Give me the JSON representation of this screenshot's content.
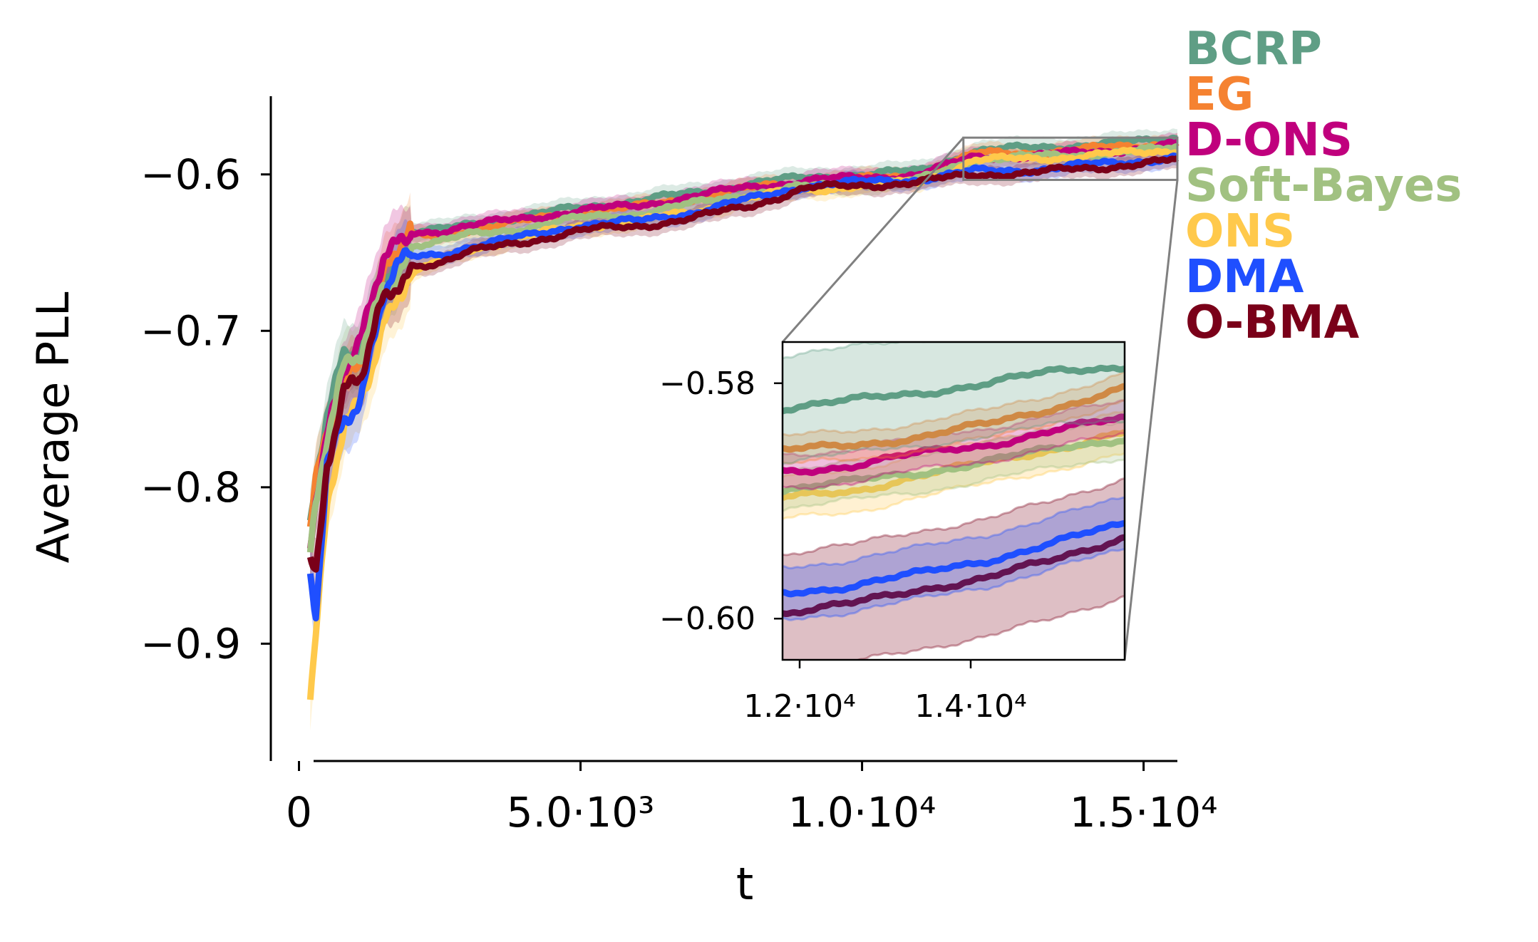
{
  "chart_data": {
    "type": "line",
    "title": "",
    "xlabel": "t",
    "ylabel": "Average PLL",
    "xlim": [
      -500,
      15600
    ],
    "ylim": [
      -0.975,
      -0.55
    ],
    "xticks": [
      {
        "value": 0,
        "label": "0"
      },
      {
        "value": 5000,
        "label": "5.0·10³"
      },
      {
        "value": 10000,
        "label": "1.0·10⁴"
      },
      {
        "value": 15000,
        "label": "1.5·10⁴"
      }
    ],
    "yticks": [
      {
        "value": -0.6,
        "label": "−0.6"
      },
      {
        "value": -0.7,
        "label": "−0.7"
      },
      {
        "value": -0.8,
        "label": "−0.8"
      },
      {
        "value": -0.9,
        "label": "−0.9"
      }
    ],
    "legend_position": "outside top-right",
    "series": [
      {
        "name": "BCRP",
        "color": "#5f9e85",
        "x": [
          200,
          300,
          500,
          800,
          1100,
          1500,
          2000,
          2500,
          3000,
          4000,
          5000,
          6000,
          7000,
          8000,
          9000,
          10000,
          11000,
          12000,
          13000,
          14000,
          15000,
          15600
        ],
        "y": [
          -0.83,
          -0.8,
          -0.76,
          -0.72,
          -0.71,
          -0.66,
          -0.637,
          -0.636,
          -0.632,
          -0.627,
          -0.621,
          -0.617,
          -0.612,
          -0.606,
          -0.602,
          -0.6,
          -0.598,
          -0.585,
          -0.583,
          -0.581,
          -0.579,
          -0.576
        ]
      },
      {
        "name": "EG",
        "color": "#f58231",
        "x": [
          200,
          300,
          500,
          800,
          1100,
          1500,
          2000,
          2500,
          3000,
          4000,
          5000,
          6000,
          7000,
          8000,
          9000,
          10000,
          11000,
          12000,
          13000,
          14000,
          15000,
          15600
        ],
        "y": [
          -0.83,
          -0.8,
          -0.765,
          -0.725,
          -0.715,
          -0.665,
          -0.64,
          -0.639,
          -0.635,
          -0.63,
          -0.624,
          -0.621,
          -0.615,
          -0.609,
          -0.605,
          -0.603,
          -0.601,
          -0.587,
          -0.586,
          -0.584,
          -0.581,
          -0.579
        ]
      },
      {
        "name": "D-ONS",
        "color": "#c0007d",
        "x": [
          200,
          300,
          500,
          800,
          1100,
          1500,
          2000,
          2500,
          3000,
          4000,
          5000,
          6000,
          7000,
          8000,
          9000,
          10000,
          11000,
          12000,
          13000,
          14000,
          15000,
          15600
        ],
        "y": [
          -0.83,
          -0.8,
          -0.76,
          -0.72,
          -0.71,
          -0.66,
          -0.637,
          -0.636,
          -0.633,
          -0.628,
          -0.623,
          -0.62,
          -0.614,
          -0.608,
          -0.604,
          -0.602,
          -0.6,
          -0.589,
          -0.588,
          -0.586,
          -0.583,
          -0.581
        ]
      },
      {
        "name": "Soft-Bayes",
        "color": "#a1c181",
        "x": [
          200,
          300,
          500,
          800,
          1100,
          1500,
          2000,
          2500,
          3000,
          4000,
          5000,
          6000,
          7000,
          8000,
          9000,
          10000,
          11000,
          12000,
          13000,
          14000,
          15000,
          15600
        ],
        "y": [
          -0.84,
          -0.81,
          -0.77,
          -0.73,
          -0.72,
          -0.67,
          -0.645,
          -0.643,
          -0.639,
          -0.634,
          -0.628,
          -0.625,
          -0.619,
          -0.612,
          -0.608,
          -0.606,
          -0.604,
          -0.59,
          -0.589,
          -0.587,
          -0.585,
          -0.583
        ]
      },
      {
        "name": "ONS",
        "color": "#ffc94b",
        "x": [
          200,
          300,
          500,
          800,
          1100,
          1500,
          2000,
          2500,
          3000,
          4000,
          5000,
          6000,
          7000,
          8000,
          9000,
          10000,
          11000,
          12000,
          13000,
          14000,
          15000,
          15600
        ],
        "y": [
          -0.94,
          -0.9,
          -0.82,
          -0.76,
          -0.74,
          -0.69,
          -0.665,
          -0.655,
          -0.648,
          -0.64,
          -0.633,
          -0.63,
          -0.624,
          -0.615,
          -0.61,
          -0.607,
          -0.605,
          -0.591,
          -0.59,
          -0.588,
          -0.586,
          -0.584
        ]
      },
      {
        "name": "DMA",
        "color": "#1f4fff",
        "x": [
          200,
          300,
          500,
          800,
          1100,
          1500,
          2000,
          2500,
          3000,
          4000,
          5000,
          6000,
          7000,
          8000,
          9000,
          10000,
          11000,
          12000,
          13000,
          14000,
          15000,
          15600
        ],
        "y": [
          -0.86,
          -0.88,
          -0.78,
          -0.75,
          -0.74,
          -0.68,
          -0.653,
          -0.651,
          -0.646,
          -0.64,
          -0.632,
          -0.63,
          -0.624,
          -0.616,
          -0.607,
          -0.605,
          -0.603,
          -0.598,
          -0.597,
          -0.594,
          -0.591,
          -0.589
        ]
      },
      {
        "name": "O-BMA",
        "color": "#7a0019",
        "x": [
          200,
          300,
          500,
          800,
          1100,
          1500,
          2000,
          2500,
          3000,
          4000,
          5000,
          6000,
          7000,
          8000,
          9000,
          10000,
          11000,
          12000,
          13000,
          14000,
          15000,
          15600
        ],
        "y": [
          -0.84,
          -0.85,
          -0.78,
          -0.74,
          -0.735,
          -0.685,
          -0.658,
          -0.656,
          -0.65,
          -0.643,
          -0.636,
          -0.633,
          -0.628,
          -0.62,
          -0.609,
          -0.607,
          -0.605,
          -0.6,
          -0.599,
          -0.596,
          -0.593,
          -0.591
        ]
      }
    ],
    "inset": {
      "xlim": [
        11800,
        15800
      ],
      "ylim": [
        -0.6035,
        -0.5765
      ],
      "xticks": [
        {
          "value": 12000,
          "label": "1.2·10⁴"
        },
        {
          "value": 14000,
          "label": "1.4·10⁴"
        }
      ],
      "yticks": [
        {
          "value": -0.58,
          "label": "−0.58"
        },
        {
          "value": -0.6,
          "label": "−0.60"
        }
      ],
      "zoom_region": {
        "x": [
          11800,
          15600
        ],
        "y": [
          -0.6035,
          -0.5765
        ]
      },
      "series": [
        {
          "name": "BCRP",
          "color": "#5f9e85",
          "x": [
            11800,
            12600,
            13400,
            14200,
            15000,
            15800
          ],
          "y": [
            -0.5821,
            -0.5815,
            -0.5808,
            -0.58,
            -0.579,
            -0.5785
          ],
          "band": 0.0045
        },
        {
          "name": "EG",
          "color": "#f58231",
          "x": [
            11800,
            12600,
            13400,
            14200,
            15000,
            15800
          ],
          "y": [
            -0.5858,
            -0.5852,
            -0.5846,
            -0.5835,
            -0.582,
            -0.5805
          ],
          "band": 0.0012
        },
        {
          "name": "D-ONS",
          "color": "#c0007d",
          "x": [
            11800,
            12600,
            13400,
            14200,
            15000,
            15800
          ],
          "y": [
            -0.5875,
            -0.587,
            -0.586,
            -0.5852,
            -0.584,
            -0.583
          ],
          "band": 0.0014
        },
        {
          "name": "Soft-Bayes",
          "color": "#a1c181",
          "x": [
            11800,
            12600,
            13400,
            14200,
            15000,
            15800
          ],
          "y": [
            -0.589,
            -0.5884,
            -0.5876,
            -0.5866,
            -0.5856,
            -0.5846
          ],
          "band": 0.0016
        },
        {
          "name": "ONS",
          "color": "#ffc94b",
          "x": [
            11800,
            12600,
            13400,
            14200,
            15000,
            15800
          ],
          "y": [
            -0.5898,
            -0.5892,
            -0.5878,
            -0.5868,
            -0.5855,
            -0.5842
          ],
          "band": 0.0018
        },
        {
          "name": "DMA",
          "color": "#1f4fff",
          "x": [
            11800,
            12600,
            13400,
            14200,
            15000,
            15800
          ],
          "y": [
            -0.5978,
            -0.5972,
            -0.5962,
            -0.595,
            -0.5935,
            -0.592
          ],
          "band": 0.0022
        },
        {
          "name": "O-BMA",
          "color": "#7a0019",
          "x": [
            11800,
            12600,
            13400,
            14200,
            15000,
            15800
          ],
          "y": [
            -0.5995,
            -0.5988,
            -0.5975,
            -0.5965,
            -0.595,
            -0.593
          ],
          "band": 0.005
        }
      ]
    }
  }
}
